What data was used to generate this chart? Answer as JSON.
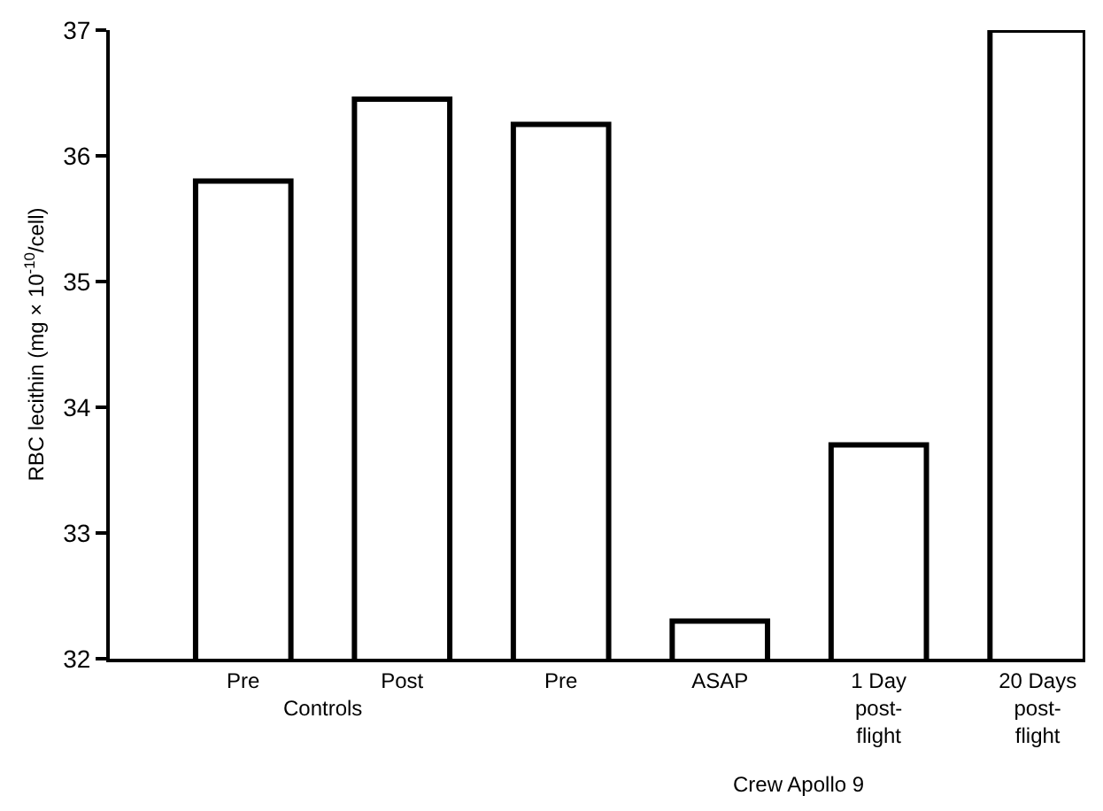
{
  "chart_data": {
    "type": "bar",
    "ylabel": "RBC lecithin (mg × 10$^{-10}$/cell)",
    "categories": [
      "Pre",
      "Post",
      "Pre",
      "ASAP",
      "1 Day\npost-\nflight",
      "20 Days\npost-\nflight"
    ],
    "values": [
      35.8,
      36.45,
      36.25,
      32.3,
      33.7,
      37.0
    ],
    "color": "#000000",
    "ylim": [
      32,
      37
    ],
    "yticks": [
      32,
      33,
      34,
      35,
      36,
      37
    ],
    "grid": false,
    "annotations": [
      "Controls",
      "Crew Apollo 9"
    ]
  }
}
